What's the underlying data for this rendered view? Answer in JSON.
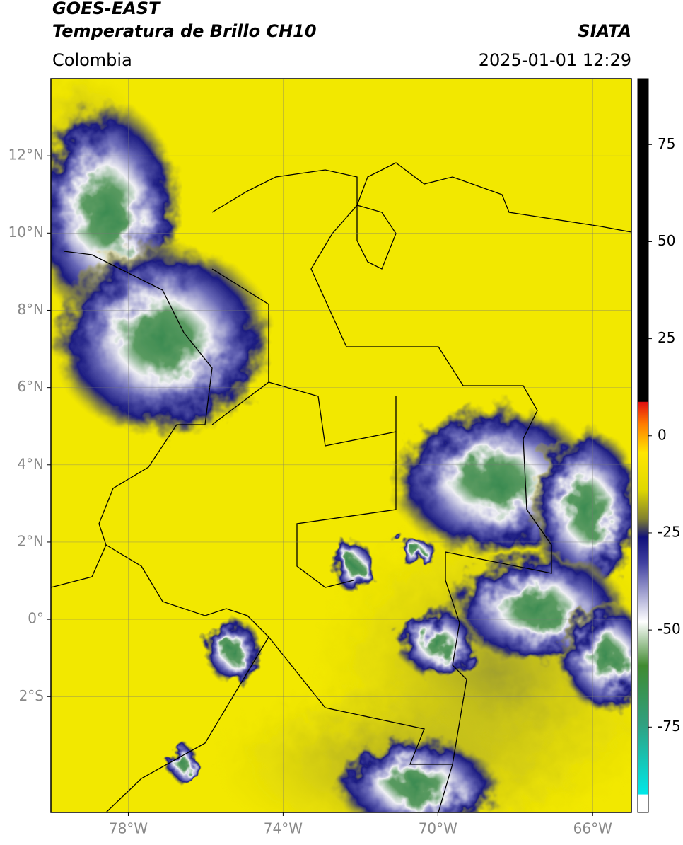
{
  "header": {
    "satellite": "GOES-EAST",
    "product": "Temperatura de Brillo CH10",
    "agency": "SIATA",
    "region": "Colombia",
    "datetime": "2025-01-01 12:29"
  },
  "map": {
    "xlim": [
      -80,
      -65
    ],
    "ylim": [
      -5,
      14
    ],
    "xticks": [
      {
        "value": -78,
        "label": "78°W"
      },
      {
        "value": -74,
        "label": "74°W"
      },
      {
        "value": -70,
        "label": "70°W"
      },
      {
        "value": -66,
        "label": "66°W"
      }
    ],
    "yticks": [
      {
        "value": 12,
        "label": "12°N"
      },
      {
        "value": 10,
        "label": "10°N"
      },
      {
        "value": 8,
        "label": "8°N"
      },
      {
        "value": 6,
        "label": "6°N"
      },
      {
        "value": 4,
        "label": "4°N"
      },
      {
        "value": 2,
        "label": "2°N"
      },
      {
        "value": 0,
        "label": "0°"
      },
      {
        "value": -2,
        "label": "2°S"
      }
    ],
    "grid": true
  },
  "colorbar": {
    "lim": [
      -97,
      92
    ],
    "ticks": [
      75,
      50,
      25,
      0,
      -25,
      -50,
      -75
    ]
  }
}
